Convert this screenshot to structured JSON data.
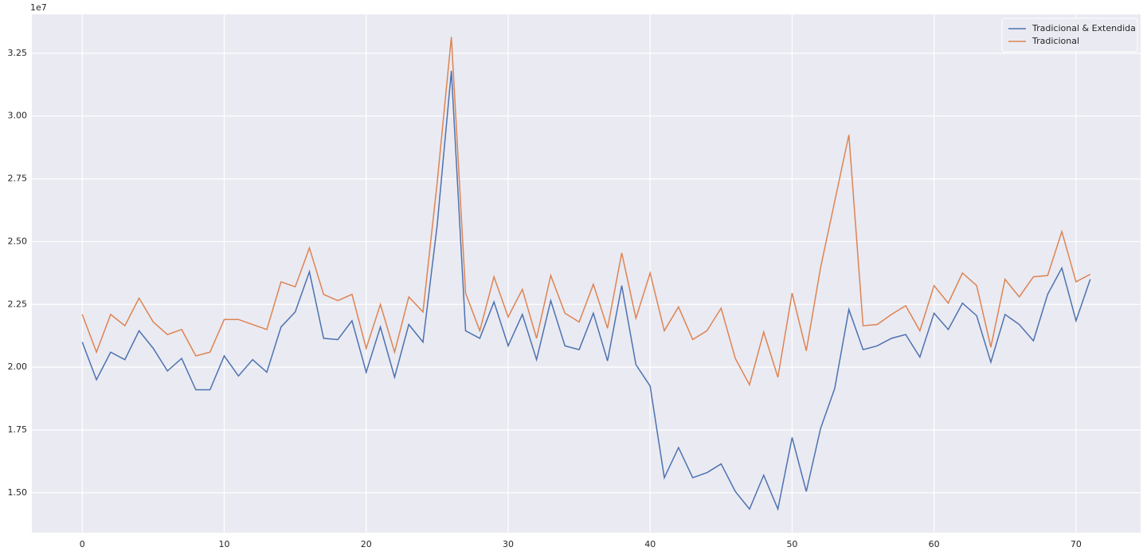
{
  "chart_data": {
    "type": "line",
    "y_offset_label": "1e7",
    "x": [
      0,
      1,
      2,
      3,
      4,
      5,
      6,
      7,
      8,
      9,
      10,
      11,
      12,
      13,
      14,
      15,
      16,
      17,
      18,
      19,
      20,
      21,
      22,
      23,
      24,
      25,
      26,
      27,
      28,
      29,
      30,
      31,
      32,
      33,
      34,
      35,
      36,
      37,
      38,
      39,
      40,
      41,
      42,
      43,
      44,
      45,
      46,
      47,
      48,
      49,
      50,
      51,
      52,
      53,
      54,
      55,
      56,
      57,
      58,
      59,
      60,
      61,
      62,
      63,
      64,
      65,
      66,
      67,
      68,
      69,
      70,
      71
    ],
    "series": [
      {
        "name": "Tradicional & Extendida",
        "color": "#4c72b0",
        "values": [
          21000000,
          19500000,
          20600000,
          20300000,
          21450000,
          20750000,
          19850000,
          20350000,
          19100000,
          19100000,
          20450000,
          19650000,
          20300000,
          19800000,
          21600000,
          22200000,
          23800000,
          21150000,
          21100000,
          21850000,
          19800000,
          21600000,
          19600000,
          21700000,
          21000000,
          25650000,
          31800000,
          21450000,
          21150000,
          22600000,
          20850000,
          22100000,
          20300000,
          22650000,
          20850000,
          20700000,
          22150000,
          20250000,
          23250000,
          20100000,
          19250000,
          15600000,
          16800000,
          15600000,
          15800000,
          16150000,
          15050000,
          14350000,
          15700000,
          14350000,
          17200000,
          15050000,
          17550000,
          19150000,
          22300000,
          20700000,
          20850000,
          21150000,
          21300000,
          20400000,
          22150000,
          21500000,
          22550000,
          22050000,
          20200000,
          22100000,
          21700000,
          21050000,
          22900000,
          23950000,
          21850000,
          23500000
        ]
      },
      {
        "name": "Tradicional",
        "color": "#dd8452",
        "values": [
          22100000,
          20600000,
          22100000,
          21650000,
          22750000,
          21800000,
          21300000,
          21500000,
          20450000,
          20600000,
          21900000,
          21900000,
          21700000,
          21500000,
          23400000,
          23200000,
          24750000,
          22900000,
          22650000,
          22900000,
          20750000,
          22500000,
          20600000,
          22800000,
          22200000,
          27350000,
          33150000,
          22950000,
          21450000,
          23600000,
          22000000,
          23100000,
          21150000,
          23650000,
          22150000,
          21800000,
          23300000,
          21550000,
          24550000,
          21950000,
          23750000,
          21450000,
          22400000,
          21100000,
          21450000,
          22350000,
          20350000,
          19300000,
          21400000,
          19600000,
          22950000,
          20650000,
          23950000,
          26600000,
          29250000,
          21650000,
          21700000,
          22100000,
          22450000,
          21450000,
          23250000,
          22550000,
          23750000,
          23250000,
          20800000,
          23500000,
          22800000,
          23600000,
          23650000,
          25400000,
          23400000,
          23700000
        ]
      }
    ],
    "xlim": [
      -3.55,
      74.55
    ],
    "xticks": [
      0,
      10,
      20,
      30,
      40,
      50,
      60,
      70
    ],
    "ylim": [
      13410000,
      34050000
    ],
    "yticks": [
      {
        "value": 15000000,
        "label": "1.50"
      },
      {
        "value": 17500000,
        "label": "1.75"
      },
      {
        "value": 20000000,
        "label": "2.00"
      },
      {
        "value": 22500000,
        "label": "2.25"
      },
      {
        "value": 25000000,
        "label": "2.50"
      },
      {
        "value": 27500000,
        "label": "2.75"
      },
      {
        "value": 30000000,
        "label": "3.00"
      },
      {
        "value": 32500000,
        "label": "3.25"
      }
    ],
    "grid": true,
    "legend": "upper right"
  }
}
